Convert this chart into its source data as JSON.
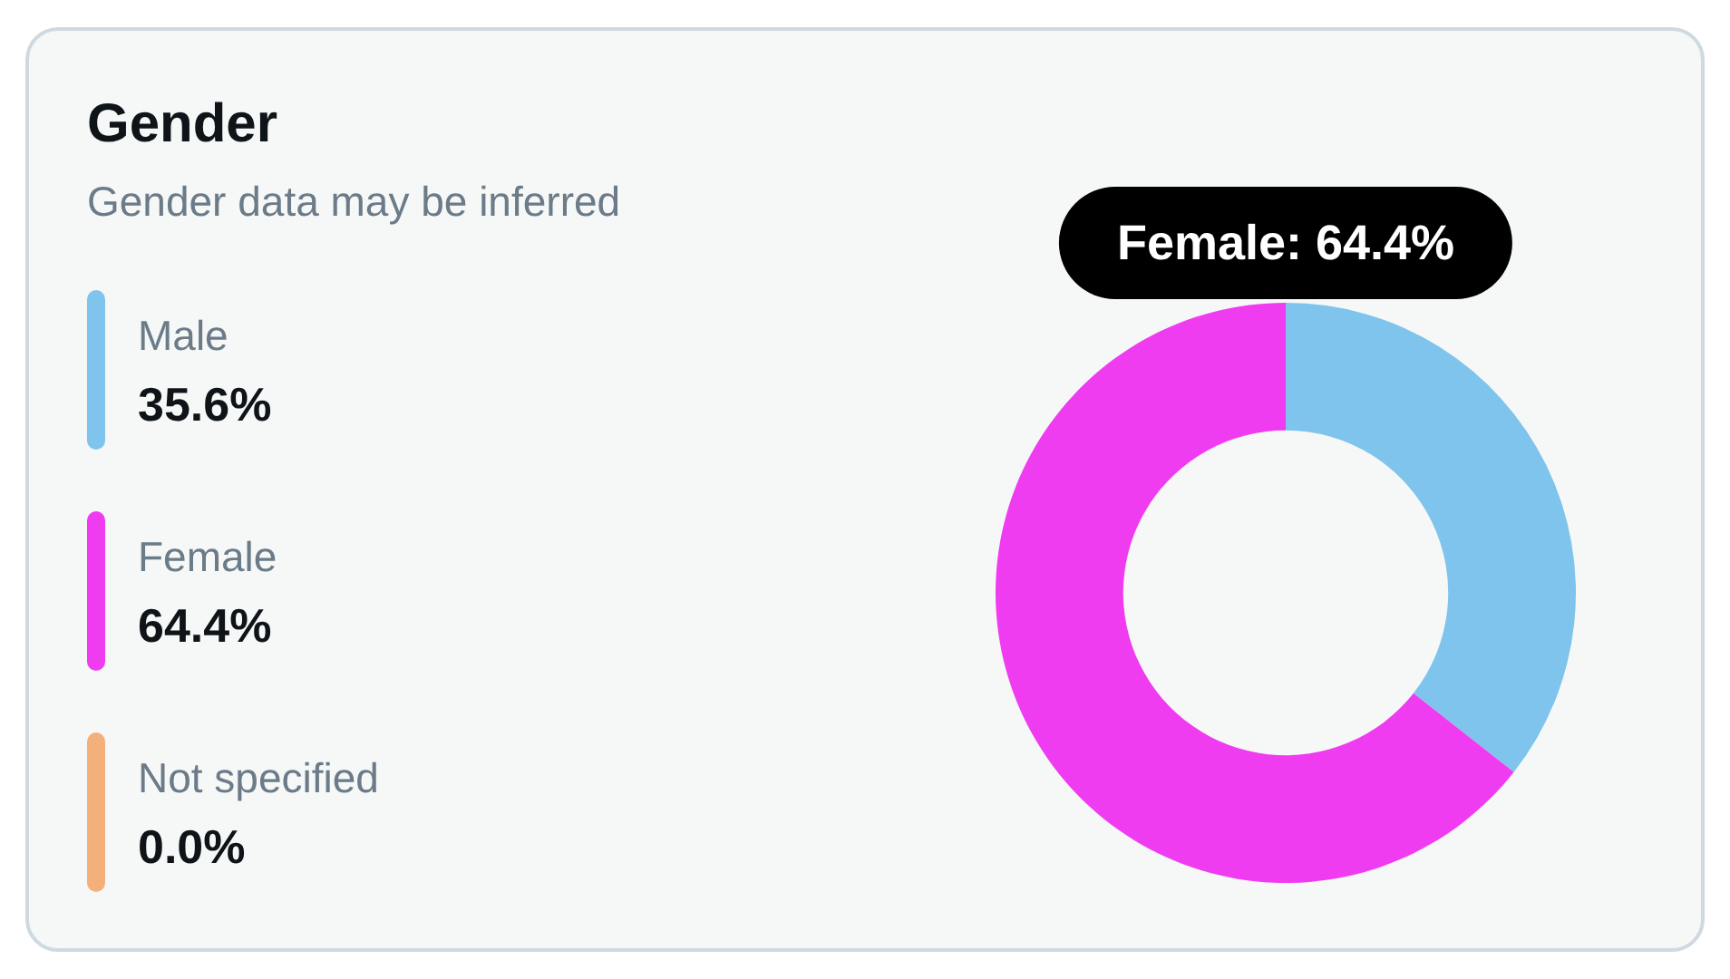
{
  "chart_data": {
    "type": "donut",
    "title": "Gender",
    "subtitle": "Gender data may be inferred",
    "categories": [
      "Male",
      "Female",
      "Not specified"
    ],
    "values": [
      35.6,
      64.4,
      0.0
    ],
    "colors": [
      "#7ec4ec",
      "#f03cf0",
      "#f4b07a"
    ],
    "value_labels": [
      "35.6%",
      "64.4%",
      "0.0%"
    ],
    "legend": "left",
    "annotations": [
      "Female: 64.4%"
    ]
  }
}
